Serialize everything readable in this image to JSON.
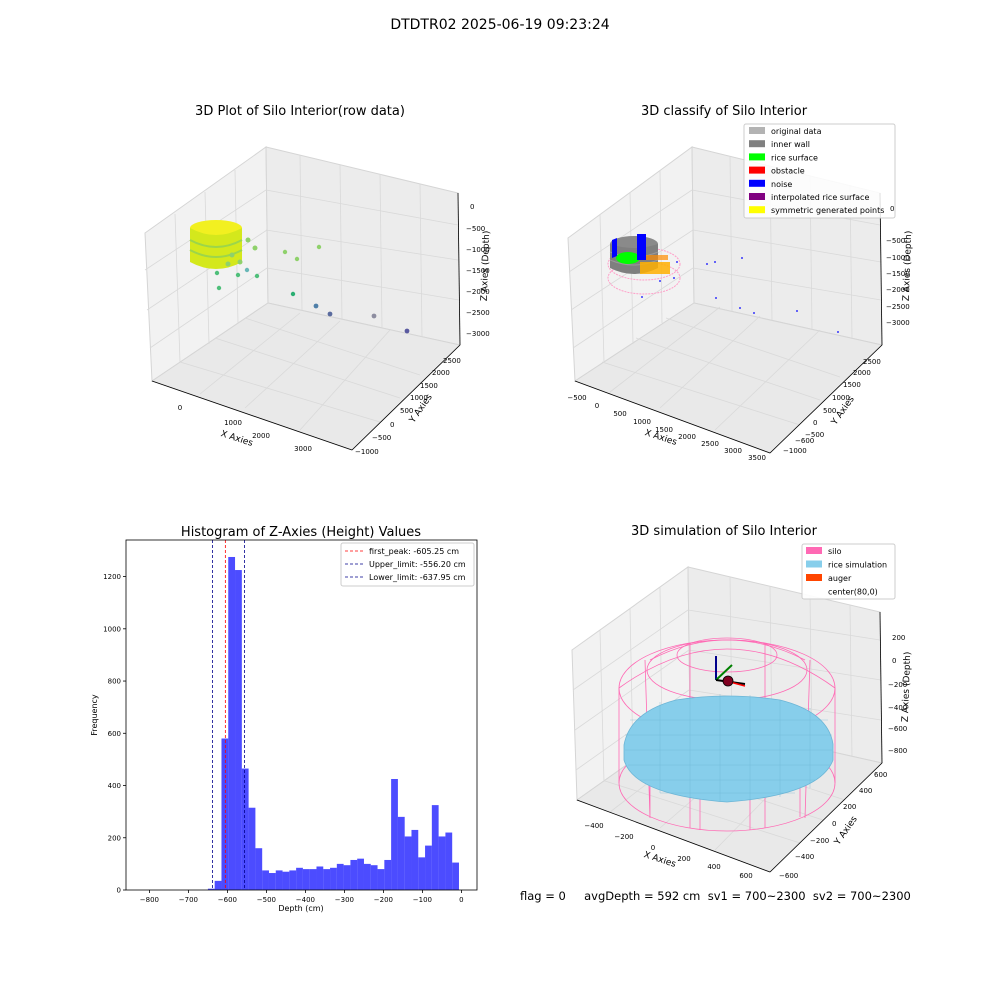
{
  "suptitle": "DTDTR02 2025-06-19 09:23:24",
  "panels": {
    "raw": {
      "title": "3D Plot of Silo Interior(row data)",
      "xlabel": "X Axies",
      "ylabel": "Y Axies",
      "zlabel": "Z Axies (Depth)",
      "xticks": [
        "0",
        "1000",
        "2000",
        "3000"
      ],
      "yticks": [
        "−1000",
        "−500",
        "0",
        "500",
        "1000",
        "1500",
        "2000",
        "2500"
      ],
      "zticks": [
        "0",
        "−500",
        "−1000",
        "−1500",
        "−2000",
        "−2500",
        "−3000"
      ]
    },
    "classify": {
      "title": "3D classify of Silo Interior",
      "xlabel": "X Axies",
      "ylabel": "Y Axies",
      "zlabel": "Z Axies (Depth)",
      "xticks": [
        "−500",
        "0",
        "500",
        "1000",
        "1500",
        "2000",
        "2500",
        "3000",
        "3500"
      ],
      "yticks": [
        "−1000",
        "−600",
        "−500",
        "0",
        "500",
        "1000",
        "1500",
        "2000",
        "2500"
      ],
      "zticks": [
        "0",
        "−500",
        "−1000",
        "−1500",
        "−2000",
        "−2500",
        "−3000"
      ],
      "legend": [
        {
          "label": "original data",
          "color": "#b3b3b3"
        },
        {
          "label": "inner wall",
          "color": "#808080"
        },
        {
          "label": "rice surface",
          "color": "#00ff00"
        },
        {
          "label": "obstacle",
          "color": "#ff0000"
        },
        {
          "label": "noise",
          "color": "#0000ff"
        },
        {
          "label": "interpolated rice surface",
          "color": "#800080"
        },
        {
          "label": "symmetric generated points",
          "color": "#ffff00"
        }
      ]
    },
    "sim": {
      "title": "3D simulation of Silo Interior",
      "xlabel": "X Axies",
      "ylabel": "Y Axies",
      "zlabel": "Z Axies (Depth)",
      "xticks": [
        "−400",
        "−200",
        "0",
        "200",
        "400",
        "600"
      ],
      "yticks": [
        "−600",
        "−400",
        "−200",
        "0",
        "200",
        "400",
        "600"
      ],
      "zticks": [
        "200",
        "0",
        "−200",
        "−400",
        "−600",
        "−800"
      ],
      "legend": [
        {
          "label": "silo",
          "color": "#ff69b4"
        },
        {
          "label": "rice simulation",
          "color": "#87ceeb"
        },
        {
          "label": "auger",
          "color": "#ff4500"
        },
        {
          "label": "center(80,0)",
          "color": ""
        }
      ]
    }
  },
  "footer": "flag = 0     avgDepth = 592 cm  sv1 = 700~2300  sv2 = 700~2300",
  "chart_data": {
    "type": "bar",
    "title": "Histogram of Z-Axies (Height) Values",
    "xlabel": "Depth (cm)",
    "ylabel": "Frequency",
    "xlim": [
      -860,
      40
    ],
    "ylim": [
      0,
      1340
    ],
    "xticks": [
      -800,
      -700,
      -600,
      -500,
      -400,
      -300,
      -200,
      -100,
      0
    ],
    "yticks": [
      0,
      200,
      400,
      600,
      800,
      1000,
      1200
    ],
    "bin_width": 17.4,
    "bin_start": -650,
    "values": [
      5,
      35,
      580,
      1275,
      1225,
      465,
      315,
      160,
      75,
      65,
      75,
      70,
      75,
      85,
      80,
      80,
      90,
      80,
      85,
      100,
      95,
      115,
      120,
      100,
      95,
      80,
      115,
      425,
      280,
      205,
      230,
      125,
      170,
      325,
      205,
      220,
      105
    ],
    "bar_color": "#0000ff",
    "vlines": [
      {
        "name": "first_peak: -605.25 cm",
        "x": -605.25,
        "color": "#ff0000"
      },
      {
        "name": "Upper_limit: -556.20 cm",
        "x": -556.2,
        "color": "#00008b"
      },
      {
        "name": "Lower_limit: -637.95 cm",
        "x": -637.95,
        "color": "#00008b"
      }
    ],
    "legend_position": "top-right"
  }
}
